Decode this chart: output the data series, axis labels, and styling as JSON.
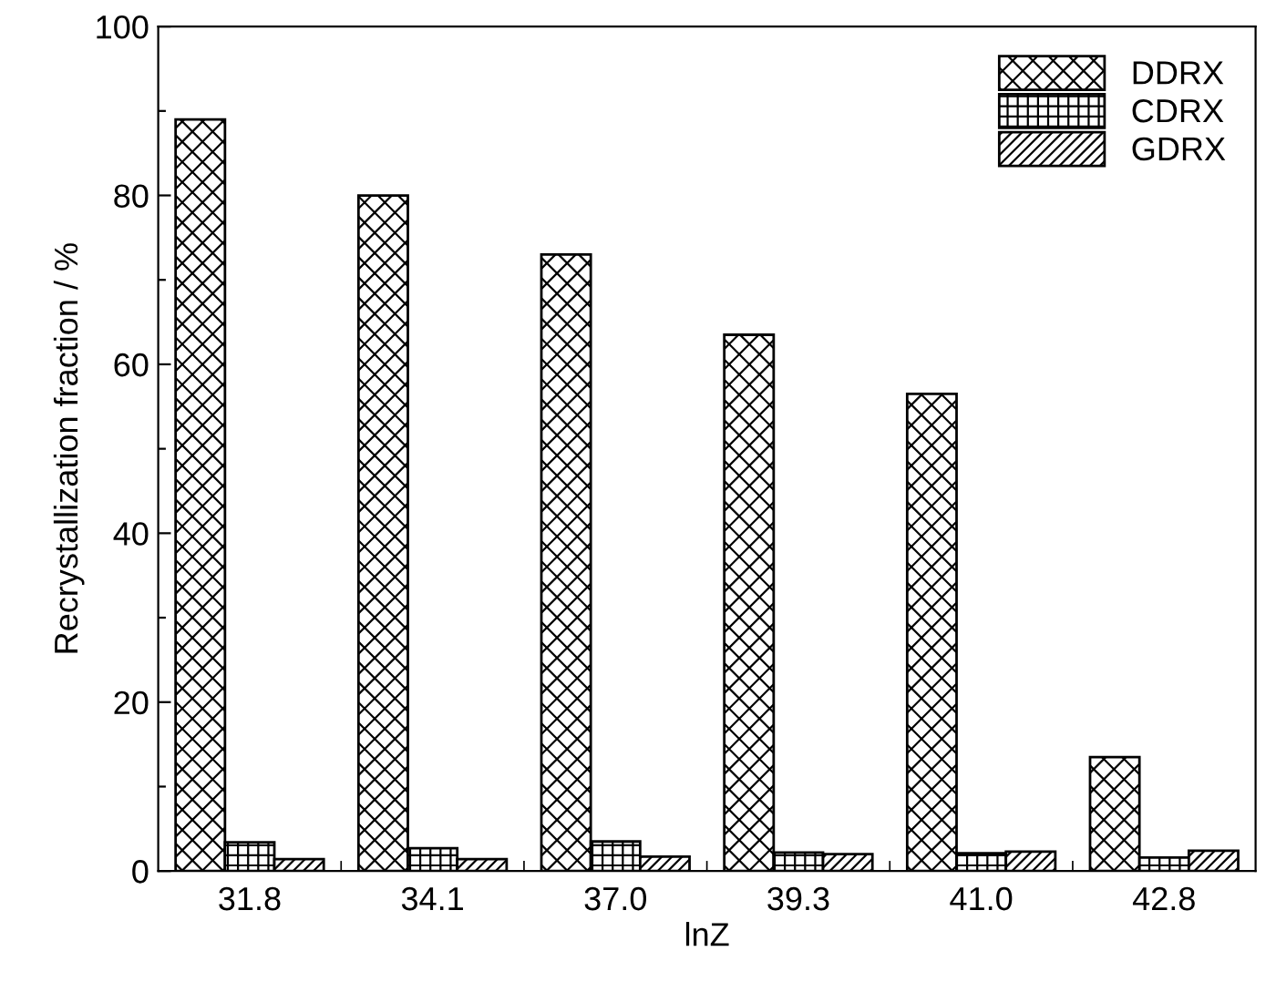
{
  "chart_data": {
    "type": "bar",
    "xlabel": "lnZ",
    "ylabel": "Recrystallization fraction / %",
    "categories": [
      "31.8",
      "34.1",
      "37.0",
      "39.3",
      "41.0",
      "42.8"
    ],
    "series": [
      {
        "name": "DDRX",
        "color": "#000000",
        "values": [
          89,
          80,
          73,
          63.5,
          56.5,
          13.5
        ]
      },
      {
        "name": "CDRX",
        "color": "#000000",
        "values": [
          3.4,
          2.7,
          3.5,
          2.2,
          2.1,
          1.6
        ]
      },
      {
        "name": "GDRX",
        "color": "#000000",
        "values": [
          1.4,
          1.4,
          1.7,
          2.0,
          2.3,
          2.4
        ]
      }
    ],
    "ylim": [
      0,
      100
    ],
    "yticks": [
      0,
      {
        "value": 10,
        "label": null
      },
      20,
      {
        "value": 30,
        "label": null
      },
      40,
      {
        "value": 50,
        "label": null
      },
      60,
      {
        "value": 70,
        "label": null
      },
      80,
      {
        "value": 90,
        "label": null
      },
      100
    ],
    "grid": false,
    "legend": "top right"
  }
}
